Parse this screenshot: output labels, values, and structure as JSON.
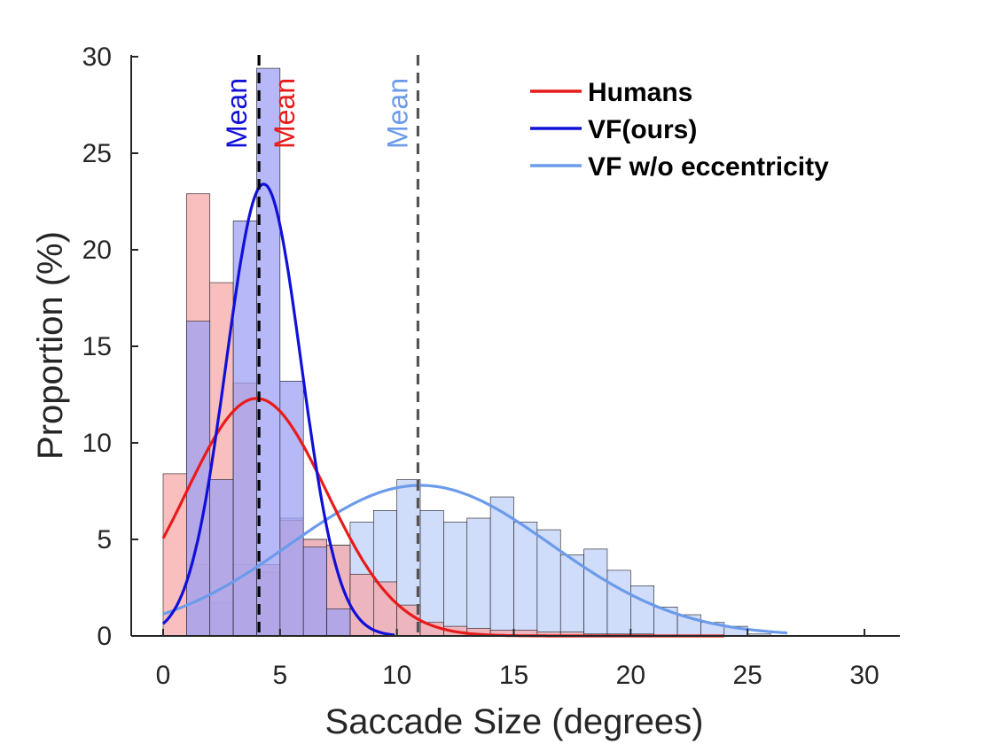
{
  "chart_data": {
    "type": "histogram",
    "xlabel": "Saccade Size (degrees)",
    "ylabel": "Proportion (%)",
    "xlim": [
      -1.4,
      31.5
    ],
    "ylim": [
      0,
      30
    ],
    "xticks": [
      "0",
      "5",
      "10",
      "15",
      "20",
      "25",
      "30"
    ],
    "yticks": [
      "0",
      "5",
      "10",
      "15",
      "20",
      "25",
      "30"
    ],
    "bin_edges": [
      0,
      1,
      2,
      3,
      4,
      5,
      6,
      7,
      8,
      9,
      10,
      11,
      12,
      13,
      14,
      15,
      16,
      17,
      18,
      19,
      20,
      21,
      22,
      23,
      24,
      25,
      26
    ],
    "grid": false,
    "legend_position": "top-right",
    "series": [
      {
        "name": "VF w/o eccentricity",
        "color": "#6b9bea",
        "fill": "#cfdcfa",
        "values": [
          0,
          3.7,
          1.7,
          3.7,
          3.3,
          6.1,
          5.0,
          4.7,
          5.9,
          6.5,
          8.1,
          6.5,
          5.9,
          6.1,
          7.2,
          5.9,
          5.5,
          4.2,
          4.5,
          3.4,
          2.6,
          1.5,
          1.1,
          0.7,
          0.5,
          0.1
        ],
        "fit": {
          "mean": 11.0,
          "peak": 7.8,
          "sd": 5.6
        },
        "mean_line": 10.9,
        "mean_label": "Mean"
      },
      {
        "name": "Humans",
        "color": "#e81b1b",
        "fill": "#f7a9a9",
        "values": [
          8.4,
          22.9,
          18.3,
          13.1,
          3.7,
          6.0,
          5.0,
          4.7,
          3.2,
          2.8,
          1.6,
          0.7,
          0.5,
          0.4,
          0.3,
          0.3,
          0.2,
          0.2,
          0.1,
          0.1,
          0.1,
          0,
          0,
          0,
          0,
          0
        ],
        "fit": {
          "mean": 4.0,
          "peak": 12.3,
          "sd": 3.0
        },
        "mean_line": 4.1,
        "mean_label": "Mean"
      },
      {
        "name": "VF(ours)",
        "color": "#1010d8",
        "fill": "#9da0f4",
        "values": [
          0,
          16.3,
          8.1,
          21.5,
          29.4,
          13.2,
          4.6,
          1.4,
          0,
          0,
          0,
          0,
          0,
          0,
          0,
          0,
          0,
          0,
          0,
          0,
          0,
          0,
          0,
          0,
          0,
          0
        ],
        "fit": {
          "mean": 4.3,
          "peak": 23.4,
          "sd": 1.6
        },
        "mean_line": 4.1,
        "mean_label": "Mean"
      }
    ]
  }
}
